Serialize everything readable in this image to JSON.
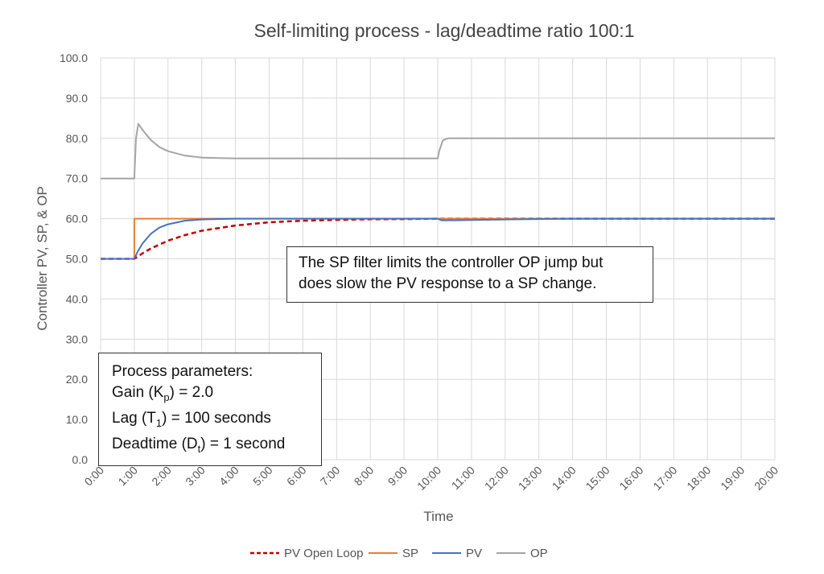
{
  "chart_data": {
    "type": "line",
    "title": "Self-limiting process - lag/deadtime ratio 100:1",
    "xlabel": "Time",
    "ylabel": "Controller PV, SP, & OP",
    "xlim_minutes": [
      0,
      20
    ],
    "ylim": [
      0,
      100
    ],
    "grid": true,
    "legend_position": "bottom",
    "x_tick_labels": [
      "0:00",
      "1:00",
      "2:00",
      "3:00",
      "4:00",
      "5:00",
      "6:00",
      "7:00",
      "8:00",
      "9:00",
      "10:00",
      "11:00",
      "12:00",
      "13:00",
      "14:00",
      "15:00",
      "16:00",
      "17:00",
      "18:00",
      "19:00",
      "20:00"
    ],
    "y_tick_labels": [
      "0.0",
      "10.0",
      "20.0",
      "30.0",
      "40.0",
      "50.0",
      "60.0",
      "70.0",
      "80.0",
      "90.0",
      "100.0"
    ],
    "series": [
      {
        "name": "PV Open Loop",
        "color": "#c00000",
        "dash": true,
        "x": [
          0,
          1,
          1.25,
          1.5,
          2,
          2.5,
          3,
          4,
          5,
          6,
          7,
          8,
          9,
          10,
          20
        ],
        "y": [
          50,
          50,
          51.4,
          52.6,
          54.5,
          55.9,
          57.0,
          58.3,
          59.1,
          59.5,
          59.7,
          59.85,
          59.9,
          60,
          60
        ]
      },
      {
        "name": "SP",
        "color": "#ed7d31",
        "dash": false,
        "x": [
          0,
          1,
          1,
          20
        ],
        "y": [
          50,
          50,
          60,
          60
        ]
      },
      {
        "name": "PV",
        "color": "#4472c4",
        "dash": false,
        "x": [
          0,
          1,
          1.1,
          1.25,
          1.5,
          1.75,
          2,
          2.5,
          3,
          4,
          10,
          10.1,
          10.5,
          12,
          14,
          20
        ],
        "y": [
          50,
          50,
          51.8,
          53.9,
          56.3,
          57.8,
          58.6,
          59.5,
          59.8,
          60,
          60,
          59.6,
          59.6,
          59.8,
          60,
          60
        ]
      },
      {
        "name": "OP",
        "color": "#a5a5a5",
        "dash": false,
        "x": [
          0,
          1,
          1.05,
          1.12,
          1.25,
          1.5,
          1.75,
          2,
          2.5,
          3,
          4,
          10,
          10.05,
          10.15,
          10.3,
          20
        ],
        "y": [
          70,
          70,
          80,
          83.6,
          82,
          79.5,
          77.8,
          76.8,
          75.7,
          75.2,
          75,
          75,
          77,
          79.5,
          80,
          80
        ]
      }
    ],
    "annotations": {
      "note_line1": "The SP filter limits the controller OP jump but",
      "note_line2": "does slow the PV response to a SP change.",
      "params_title": "Process parameters:",
      "params_gain": "Gain (Kp) = 2.0",
      "params_lag": "Lag (T1) = 100 seconds",
      "params_deadtime": "Deadtime (Dt) = 1 second"
    }
  }
}
